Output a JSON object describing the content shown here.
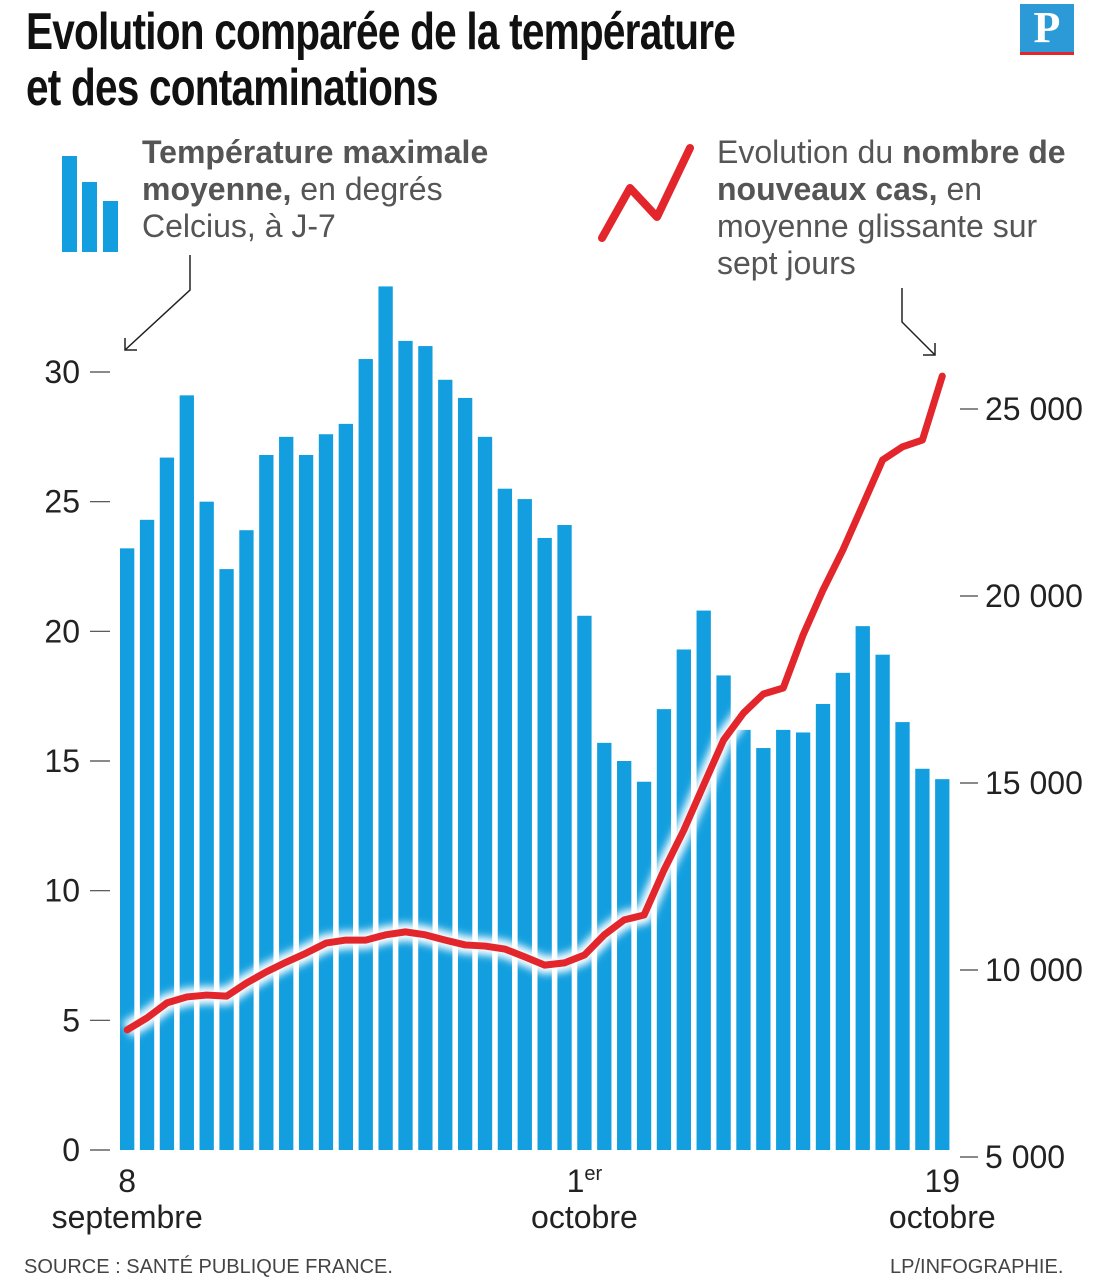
{
  "title_line1": "Evolution comparée de la température",
  "title_line2": "et des contaminations",
  "logo": "P",
  "legend_bars": {
    "bold": "Température maximale moyenne,",
    "rest": " en degrés Celcius, à J-7",
    "color": "#139fdf"
  },
  "legend_line": {
    "pre": "Evolution du ",
    "bold": "nombre de nouveaux cas,",
    "rest": " en moyenne glissante sur sept jours",
    "color": "#e3262b"
  },
  "source": "SOURCE : SANTÉ PUBLIQUE FRANCE.",
  "credit": "LP/INFOGRAPHIE.",
  "chart_data": {
    "type": "bar+line",
    "x_labels": [
      {
        "day": "8",
        "month": "septembre",
        "index": 0
      },
      {
        "day": "1",
        "sup": "er",
        "month": "octobre",
        "index": 23
      },
      {
        "day": "19",
        "month": "octobre",
        "index": 41
      }
    ],
    "left_axis": {
      "ticks": [
        "0",
        "5",
        "10",
        "15",
        "20",
        "25",
        "30"
      ],
      "ylim": [
        0,
        30
      ]
    },
    "right_axis": {
      "ticks": [
        "5 000",
        "10 000",
        "15 000",
        "20 000",
        "25 000"
      ],
      "ylim": [
        5000,
        25000
      ]
    },
    "temperature": [
      23.2,
      24.3,
      26.7,
      29.1,
      25.0,
      22.4,
      23.9,
      26.8,
      27.5,
      26.8,
      27.6,
      28.0,
      30.5,
      33.3,
      31.2,
      31.0,
      29.7,
      29.0,
      27.5,
      25.5,
      25.1,
      23.6,
      24.1,
      20.6,
      15.7,
      15.0,
      14.2,
      17.0,
      19.3,
      20.8,
      18.3,
      16.2,
      15.5,
      16.2,
      16.1,
      17.2,
      18.4,
      20.2,
      19.1,
      16.5,
      14.7,
      14.3
    ],
    "new_cases": [
      8400,
      8720,
      9120,
      9280,
      9330,
      9300,
      9650,
      9950,
      10210,
      10450,
      10720,
      10800,
      10800,
      10940,
      11020,
      10940,
      10800,
      10670,
      10640,
      10560,
      10350,
      10130,
      10190,
      10400,
      10940,
      11340,
      11470,
      12670,
      13740,
      14950,
      16150,
      16870,
      17380,
      17540,
      18960,
      20160,
      21230,
      22430,
      23640,
      23990,
      24170,
      25880
    ]
  }
}
